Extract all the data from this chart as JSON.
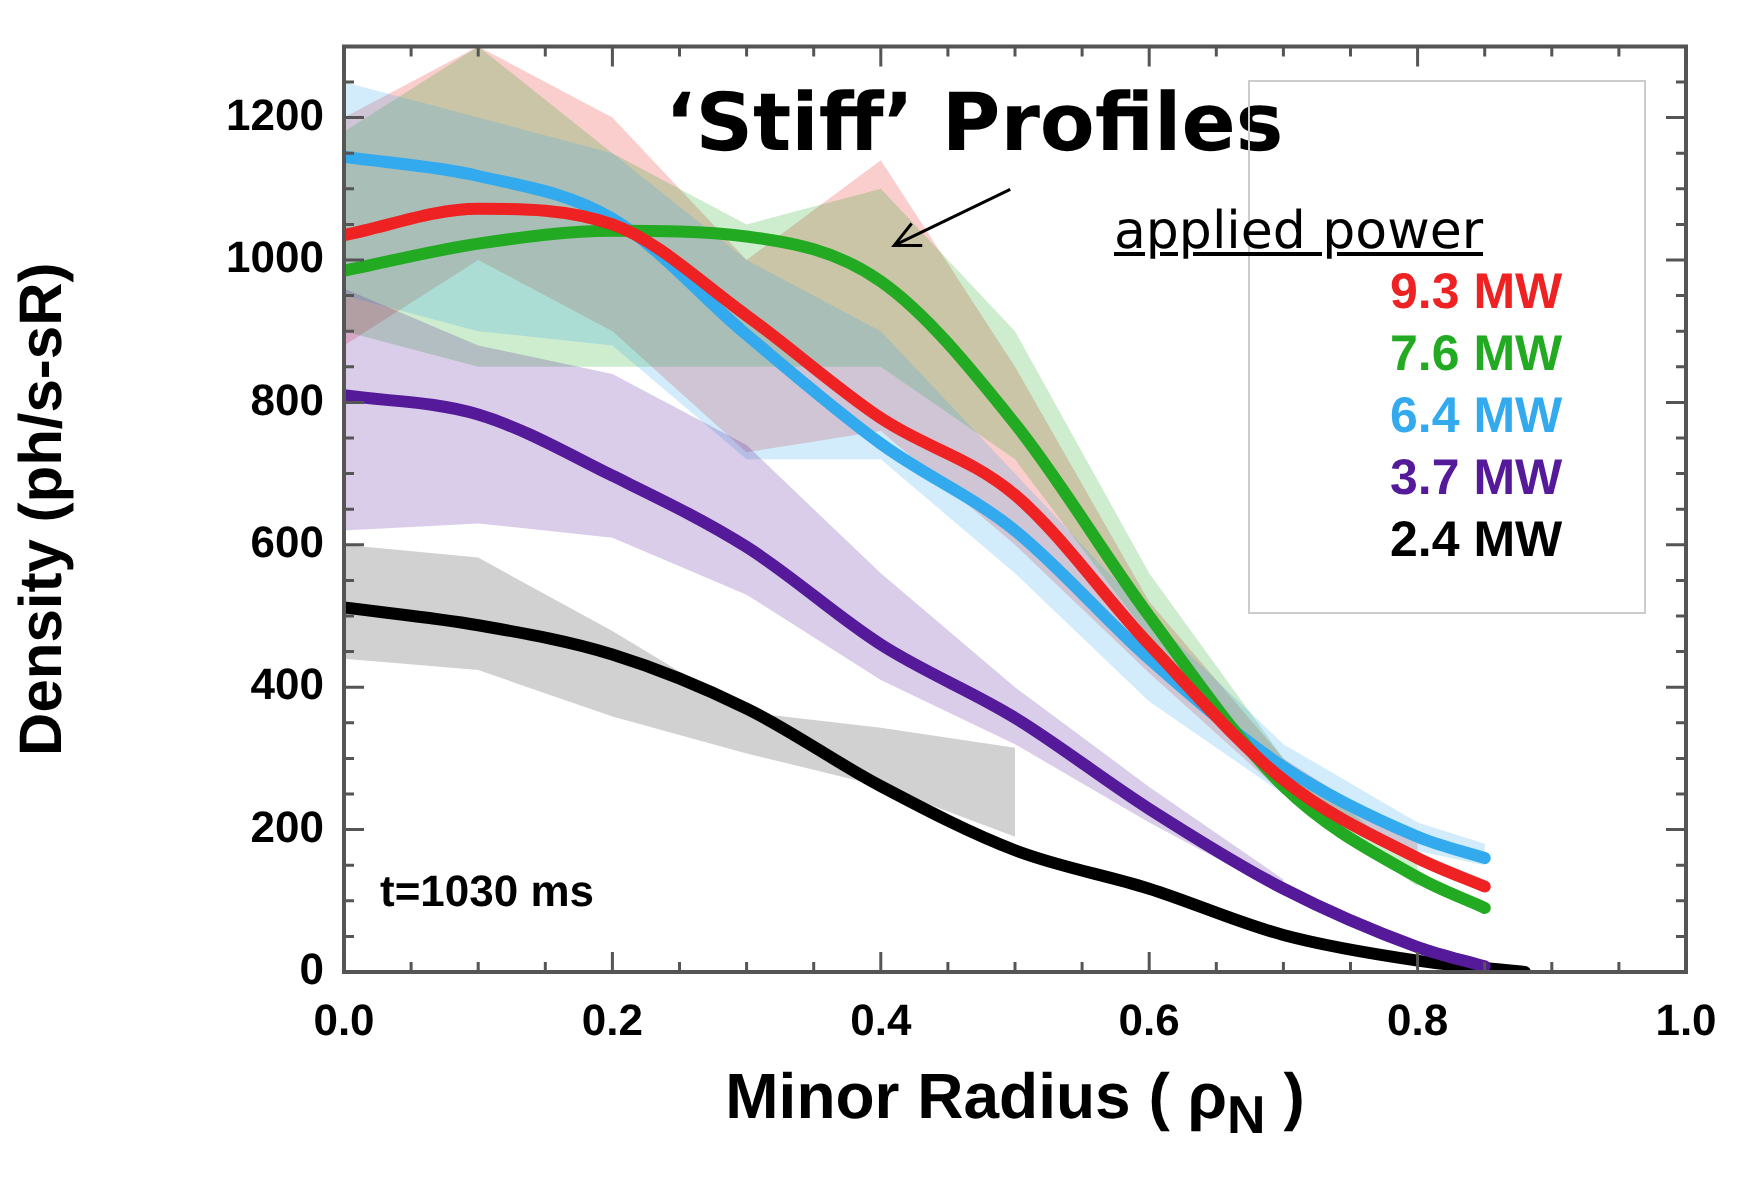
{
  "chart_data": {
    "type": "line",
    "xlabel": "Minor Radius ( ρ$_{N}$ )",
    "ylabel": "Density (ph/s-sR)",
    "legend_title": "applied power",
    "legend": "top right",
    "marker": "none",
    "line_style": "solid",
    "annotations": [
      "‘Stiff’ Profiles",
      "t=1030 ms"
    ],
    "xlim": [
      0,
      1.0
    ],
    "ylim": [
      0,
      1300
    ],
    "xticks": [
      {
        "value": 0,
        "label": "0.0"
      },
      {
        "value": 0.05,
        "label": null
      },
      {
        "value": 0.1,
        "label": null
      },
      {
        "value": 0.15,
        "label": null
      },
      {
        "value": 0.2,
        "label": "0.2"
      },
      {
        "value": 0.25,
        "label": null
      },
      {
        "value": 0.3,
        "label": null
      },
      {
        "value": 0.35,
        "label": null
      },
      {
        "value": 0.4,
        "label": "0.4"
      },
      {
        "value": 0.45,
        "label": null
      },
      {
        "value": 0.5,
        "label": null
      },
      {
        "value": 0.55,
        "label": null
      },
      {
        "value": 0.6,
        "label": "0.6"
      },
      {
        "value": 0.65,
        "label": null
      },
      {
        "value": 0.7,
        "label": null
      },
      {
        "value": 0.75,
        "label": null
      },
      {
        "value": 0.8,
        "label": "0.8"
      },
      {
        "value": 0.85,
        "label": null
      },
      {
        "value": 0.9,
        "label": null
      },
      {
        "value": 0.95,
        "label": null
      },
      {
        "value": 1.0,
        "label": "1.0"
      }
    ],
    "yticks": [
      0,
      {
        "value": 50,
        "label": null
      },
      {
        "value": 100,
        "label": null
      },
      {
        "value": 150,
        "label": null
      },
      200,
      {
        "value": 250,
        "label": null
      },
      {
        "value": 300,
        "label": null
      },
      {
        "value": 350,
        "label": null
      },
      400,
      {
        "value": 450,
        "label": null
      },
      {
        "value": 500,
        "label": null
      },
      {
        "value": 550,
        "label": null
      },
      600,
      {
        "value": 650,
        "label": null
      },
      {
        "value": 700,
        "label": null
      },
      {
        "value": 750,
        "label": null
      },
      800,
      {
        "value": 850,
        "label": null
      },
      {
        "value": 900,
        "label": null
      },
      {
        "value": 950,
        "label": null
      },
      1000,
      {
        "value": 1050,
        "label": null
      },
      {
        "value": 1100,
        "label": null
      },
      {
        "value": 1150,
        "label": null
      },
      1200,
      {
        "value": 1250,
        "label": null
      }
    ],
    "series": [
      {
        "name": "9.3 MW",
        "color": "#ee2222",
        "x": [
          0,
          0.1,
          0.2,
          0.3,
          0.4,
          0.5,
          0.6,
          0.7,
          0.8,
          0.85
        ],
        "values": [
          1035,
          1072,
          1050,
          922,
          778,
          670,
          460,
          270,
          160,
          120
        ],
        "lower": [
          880,
          1000,
          900,
          730,
          760,
          600,
          420,
          250,
          150,
          null
        ],
        "upper": [
          1200,
          1300,
          1200,
          1000,
          1140,
          850,
          520,
          300,
          180,
          null
        ]
      },
      {
        "name": "7.6 MW",
        "color": "#22aa22",
        "x": [
          0,
          0.1,
          0.2,
          0.3,
          0.4,
          0.5,
          0.6,
          0.7,
          0.8,
          0.85
        ],
        "values": [
          985,
          1023,
          1041,
          1033,
          970,
          770,
          500,
          261,
          133,
          90
        ],
        "lower": [
          900,
          850,
          850,
          850,
          850,
          720,
          470,
          250,
          120,
          null
        ],
        "upper": [
          1180,
          1300,
          1150,
          1050,
          1100,
          900,
          560,
          300,
          150,
          null
        ]
      },
      {
        "name": "6.4 MW",
        "color": "#33aaee",
        "x": [
          0,
          0.1,
          0.2,
          0.3,
          0.4,
          0.5,
          0.6,
          0.7,
          0.8,
          0.85
        ],
        "values": [
          1145,
          1118,
          1058,
          895,
          742,
          620,
          440,
          288,
          190,
          160
        ],
        "lower": [
          950,
          900,
          880,
          720,
          720,
          560,
          380,
          250,
          170,
          150
        ],
        "upper": [
          1250,
          1200,
          1150,
          1000,
          900,
          700,
          500,
          320,
          210,
          180
        ]
      },
      {
        "name": "3.7 MW",
        "color": "#551a99",
        "x": [
          0,
          0.1,
          0.2,
          0.3,
          0.4,
          0.5,
          0.6,
          0.7,
          0.8,
          0.85
        ],
        "values": [
          810,
          783,
          697,
          597,
          460,
          357,
          229,
          117,
          35,
          8
        ],
        "lower": [
          620,
          630,
          610,
          530,
          410,
          320,
          210,
          110,
          null,
          null
        ],
        "upper": [
          960,
          880,
          840,
          740,
          560,
          400,
          260,
          130,
          null,
          null
        ]
      },
      {
        "name": "2.4 MW",
        "color": "#000000",
        "x": [
          0,
          0.1,
          0.2,
          0.3,
          0.4,
          0.5,
          0.6,
          0.7,
          0.8,
          0.88
        ],
        "values": [
          512,
          487,
          446,
          370,
          261,
          171,
          117,
          52,
          16,
          0
        ],
        "lower": [
          440,
          424,
          359,
          307,
          261,
          190,
          null,
          null,
          null,
          null
        ],
        "upper": [
          600,
          582,
          479,
          365,
          343,
          315,
          null,
          null,
          null,
          null
        ]
      }
    ]
  }
}
